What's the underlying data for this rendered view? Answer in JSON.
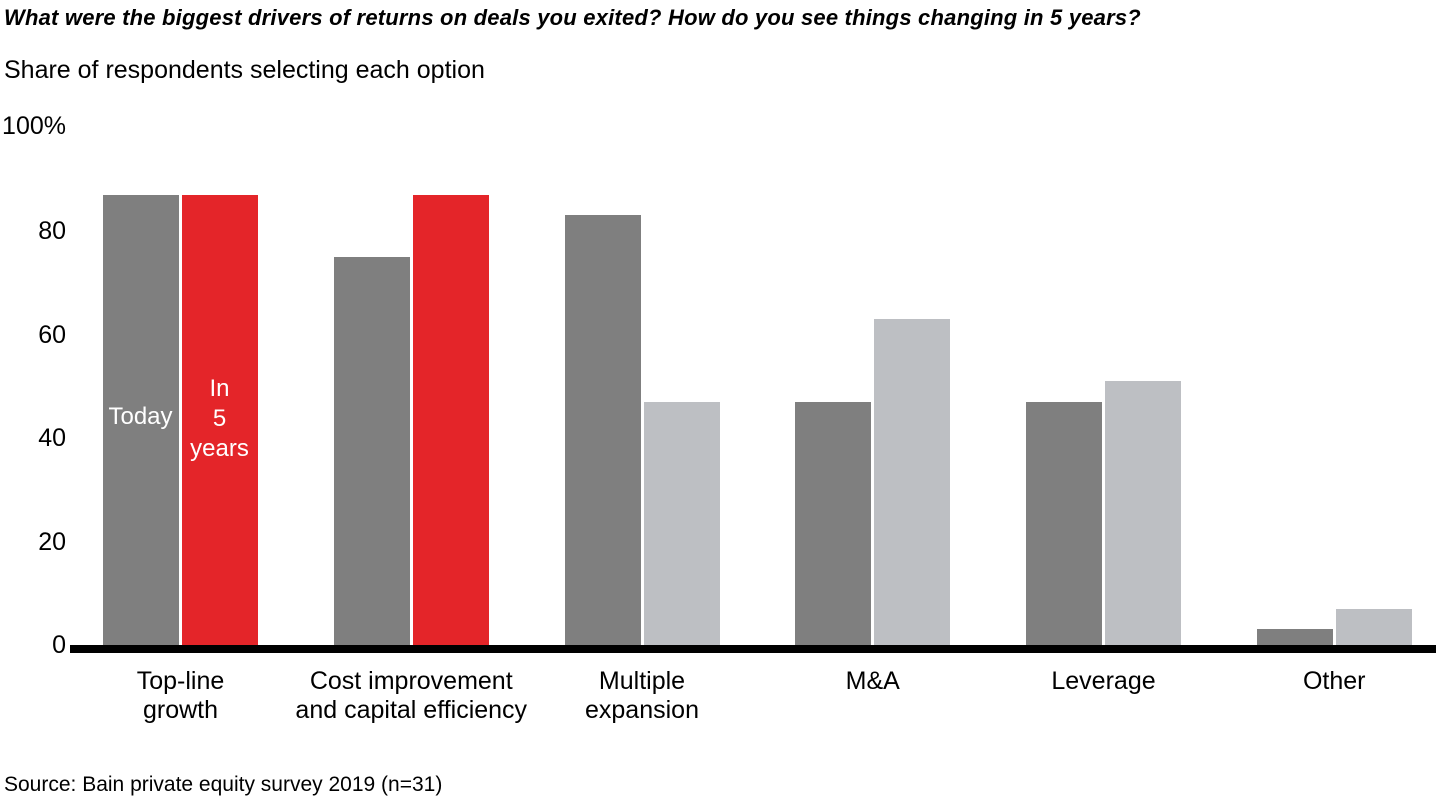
{
  "header": {
    "title": "What were the biggest drivers of returns on deals you exited? How do you see things changing in 5 years?",
    "subtitle": "Share of respondents selecting each option"
  },
  "footer": {
    "source": "Source: Bain private equity survey 2019 (n=31)"
  },
  "chart_data": {
    "type": "bar",
    "title": "What were the biggest drivers of returns on deals you exited? How do you see things changing in 5 years?",
    "subtitle": "Share of respondents selecting each option",
    "categories": [
      "Top-line growth",
      "Cost improvement and capital efficiency",
      "Multiple expansion",
      "M&A",
      "Leverage",
      "Other"
    ],
    "category_labels_wrapped": [
      "Top-line\ngrowth",
      "Cost improvement\nand capital efficiency",
      "Multiple\nexpansion",
      "M&A",
      "Leverage",
      "Other"
    ],
    "series": [
      {
        "name": "Today",
        "values": [
          87,
          75,
          83,
          47,
          47,
          3
        ],
        "color": "#7f7f7f"
      },
      {
        "name": "In 5 years",
        "values": [
          87,
          87,
          47,
          63,
          51,
          7
        ],
        "colors": [
          "#e42529",
          "#e42529",
          "#bdbfc3",
          "#bdbfc3",
          "#bdbfc3",
          "#bdbfc3"
        ]
      }
    ],
    "inner_labels": {
      "today": "Today",
      "in_5_years": "In\n5\nyears"
    },
    "legend_position": "inside-first-bar-pair",
    "ylabel": "Share of respondents selecting each option",
    "xlabel": "",
    "ylim": [
      0,
      100
    ],
    "y_ticks": [
      0,
      20,
      40,
      60,
      80
    ],
    "y_top_label": "100%",
    "grid": false,
    "highlight_color": "#e42529",
    "today_color": "#7f7f7f",
    "future_muted_color": "#bdbfc3",
    "axis_color": "#000000"
  }
}
